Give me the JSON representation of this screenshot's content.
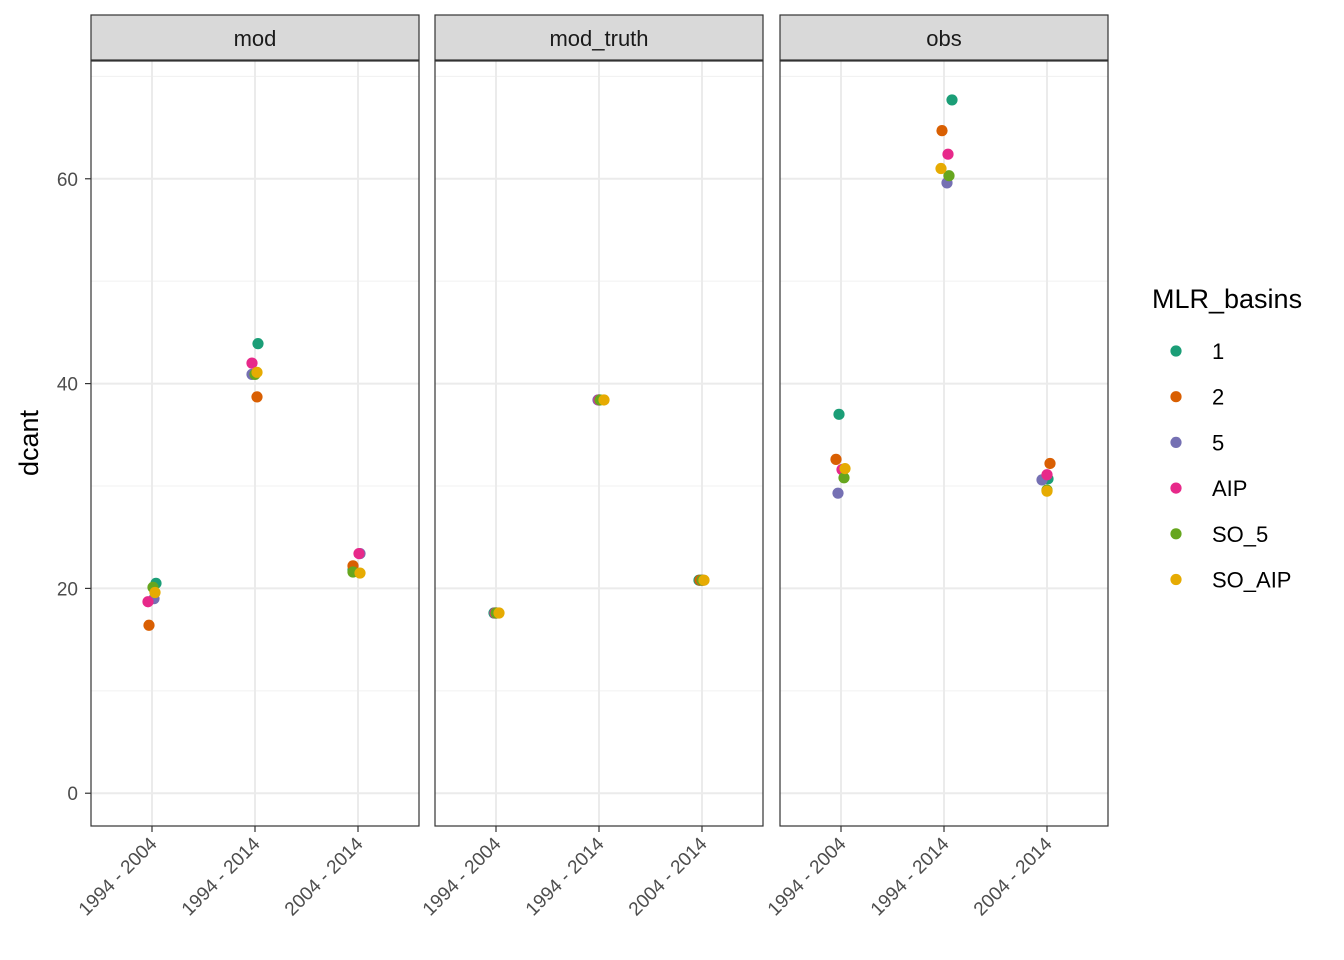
{
  "chart_data": {
    "type": "scatter",
    "facets": [
      "mod",
      "mod_truth",
      "obs"
    ],
    "categories": [
      "1994 - 2004",
      "1994 - 2014",
      "2004 - 2014"
    ],
    "ylabel": "dcant",
    "xlabel": "",
    "ylim": [
      -3.2,
      71.5
    ],
    "yticks": [
      0,
      20,
      40,
      60
    ],
    "legend": {
      "title": "MLR_basins",
      "position": "right",
      "items": [
        {
          "label": "1",
          "color": "#1B9E77"
        },
        {
          "label": "2",
          "color": "#D95F02"
        },
        {
          "label": "5",
          "color": "#7570B3"
        },
        {
          "label": "AIP",
          "color": "#E7298A"
        },
        {
          "label": "SO_5",
          "color": "#66A61E"
        },
        {
          "label": "SO_AIP",
          "color": "#E6AB02"
        }
      ]
    },
    "series": [
      {
        "name": "1",
        "values": {
          "mod": [
            20.5,
            43.9,
            21.8
          ],
          "mod_truth": [
            17.6,
            38.4,
            20.8
          ],
          "obs": [
            37.0,
            67.7,
            30.7
          ]
        }
      },
      {
        "name": "2",
        "values": {
          "mod": [
            16.4,
            38.7,
            22.2
          ],
          "mod_truth": [
            17.6,
            38.4,
            20.8
          ],
          "obs": [
            32.6,
            64.7,
            32.2
          ]
        }
      },
      {
        "name": "5",
        "values": {
          "mod": [
            19.0,
            40.9,
            23.4
          ],
          "mod_truth": [
            17.6,
            38.4,
            20.8
          ],
          "obs": [
            29.3,
            59.6,
            30.6
          ]
        }
      },
      {
        "name": "AIP",
        "values": {
          "mod": [
            18.7,
            42.0,
            23.4
          ],
          "mod_truth": [
            17.6,
            38.4,
            20.8
          ],
          "obs": [
            31.6,
            62.4,
            31.1
          ]
        }
      },
      {
        "name": "SO_5",
        "values": {
          "mod": [
            20.1,
            40.9,
            21.6
          ],
          "mod_truth": [
            17.6,
            38.4,
            20.8
          ],
          "obs": [
            30.8,
            60.3,
            29.6
          ]
        }
      },
      {
        "name": "SO_AIP",
        "values": {
          "mod": [
            19.6,
            41.1,
            21.5
          ],
          "mod_truth": [
            17.6,
            38.4,
            20.8
          ],
          "obs": [
            31.7,
            61.0,
            29.5
          ]
        }
      }
    ]
  }
}
